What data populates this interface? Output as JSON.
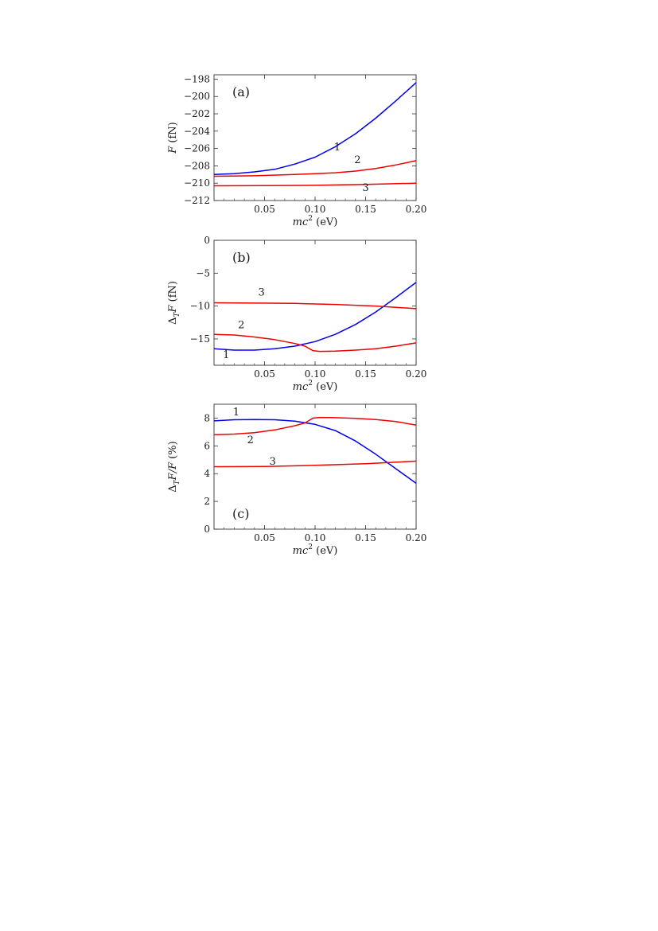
{
  "chart_data": [
    {
      "type": "line",
      "panel_label": "(a)",
      "xlabel": {
        "var": "mc",
        "sup": "2",
        "unit": "(eV)"
      },
      "ylabel": {
        "var": "F",
        "sub": "",
        "rest": "",
        "unit": "(fN)"
      },
      "xlim": [
        0,
        0.2
      ],
      "ylim": [
        -212,
        -197.5
      ],
      "xticks": [
        0.05,
        0.1,
        0.15,
        0.2
      ],
      "xtick_labels": [
        "0.05",
        "0.10",
        "0.15",
        "0.20"
      ],
      "yticks": [
        -198,
        -200,
        -202,
        -204,
        -206,
        -208,
        -210,
        -212
      ],
      "ytick_labels": [
        "−198",
        "−200",
        "−202",
        "−204",
        "−206",
        "−208",
        "−210",
        "−212"
      ],
      "series": [
        {
          "label": "1",
          "color": "#0000ee",
          "label_at": [
            0.122,
            -206.2
          ],
          "x": [
            0,
            0.02,
            0.04,
            0.06,
            0.08,
            0.1,
            0.12,
            0.14,
            0.16,
            0.18,
            0.2
          ],
          "y": [
            -209.0,
            -208.9,
            -208.7,
            -208.4,
            -207.8,
            -207.0,
            -205.8,
            -204.3,
            -202.5,
            -200.5,
            -198.4
          ]
        },
        {
          "label": "2",
          "color": "#ee0000",
          "label_at": [
            0.142,
            -207.7
          ],
          "x": [
            0,
            0.04,
            0.08,
            0.1,
            0.12,
            0.14,
            0.16,
            0.18,
            0.2
          ],
          "y": [
            -209.2,
            -209.15,
            -209.0,
            -208.9,
            -208.8,
            -208.6,
            -208.3,
            -207.9,
            -207.4
          ]
        },
        {
          "label": "3",
          "color": "#ee0000",
          "label_at": [
            0.15,
            -210.9
          ],
          "x": [
            0,
            0.05,
            0.1,
            0.15,
            0.2
          ],
          "y": [
            -210.3,
            -210.28,
            -210.25,
            -210.15,
            -210.0
          ]
        }
      ]
    },
    {
      "type": "line",
      "panel_label": "(b)",
      "xlabel": {
        "var": "mc",
        "sup": "2",
        "unit": "(eV)"
      },
      "ylabel": {
        "var": "Δ",
        "sub": "T",
        "rest": "F",
        "unit": "(fN)"
      },
      "xlim": [
        0,
        0.2
      ],
      "ylim": [
        -19,
        0
      ],
      "xticks": [
        0.05,
        0.1,
        0.15,
        0.2
      ],
      "xtick_labels": [
        "0.05",
        "0.10",
        "0.15",
        "0.20"
      ],
      "yticks": [
        0,
        -5,
        -10,
        -15
      ],
      "ytick_labels": [
        "0",
        "−5",
        "−10",
        "−15"
      ],
      "series": [
        {
          "label": "1",
          "color": "#0000ee",
          "label_at": [
            0.012,
            -17.9
          ],
          "x": [
            0,
            0.02,
            0.04,
            0.06,
            0.08,
            0.1,
            0.12,
            0.14,
            0.16,
            0.18,
            0.2
          ],
          "y": [
            -16.5,
            -16.7,
            -16.7,
            -16.5,
            -16.1,
            -15.4,
            -14.3,
            -12.8,
            -10.9,
            -8.7,
            -6.4
          ]
        },
        {
          "label": "2",
          "color": "#ee0000",
          "label_at": [
            0.027,
            -13.4
          ],
          "x": [
            0,
            0.02,
            0.04,
            0.06,
            0.08,
            0.09,
            0.098,
            0.105,
            0.12,
            0.14,
            0.16,
            0.18,
            0.2
          ],
          "y": [
            -14.3,
            -14.4,
            -14.7,
            -15.1,
            -15.7,
            -16.1,
            -16.8,
            -16.9,
            -16.85,
            -16.7,
            -16.5,
            -16.1,
            -15.6
          ]
        },
        {
          "label": "3",
          "color": "#ee0000",
          "label_at": [
            0.047,
            -8.4
          ],
          "x": [
            0,
            0.04,
            0.08,
            0.12,
            0.16,
            0.2
          ],
          "y": [
            -9.5,
            -9.55,
            -9.6,
            -9.75,
            -10.0,
            -10.4
          ]
        }
      ]
    },
    {
      "type": "line",
      "panel_label": "(c)",
      "xlabel": {
        "var": "mc",
        "sup": "2",
        "unit": "(eV)"
      },
      "ylabel": {
        "var": "Δ",
        "sub": "T",
        "rest": "F/F",
        "unit": "(%)"
      },
      "xlim": [
        0,
        0.2
      ],
      "ylim": [
        0,
        9
      ],
      "xticks": [
        0.05,
        0.1,
        0.15,
        0.2
      ],
      "xtick_labels": [
        "0.05",
        "0.10",
        "0.15",
        "0.20"
      ],
      "yticks": [
        0,
        2,
        4,
        6,
        8
      ],
      "ytick_labels": [
        "0",
        "2",
        "4",
        "6",
        "8"
      ],
      "series": [
        {
          "label": "1",
          "color": "#0000ee",
          "label_at": [
            0.022,
            8.2
          ],
          "x": [
            0,
            0.02,
            0.04,
            0.06,
            0.08,
            0.1,
            0.12,
            0.14,
            0.16,
            0.18,
            0.2
          ],
          "y": [
            7.8,
            7.88,
            7.9,
            7.88,
            7.78,
            7.55,
            7.1,
            6.35,
            5.4,
            4.35,
            3.3
          ]
        },
        {
          "label": "2",
          "color": "#ee0000",
          "label_at": [
            0.036,
            6.2
          ],
          "x": [
            0,
            0.02,
            0.04,
            0.06,
            0.08,
            0.09,
            0.098,
            0.105,
            0.12,
            0.14,
            0.16,
            0.18,
            0.2
          ],
          "y": [
            6.8,
            6.85,
            6.95,
            7.15,
            7.45,
            7.65,
            8.0,
            8.05,
            8.03,
            7.98,
            7.9,
            7.75,
            7.5
          ]
        },
        {
          "label": "3",
          "color": "#ee0000",
          "label_at": [
            0.058,
            4.65
          ],
          "x": [
            0,
            0.05,
            0.1,
            0.15,
            0.2
          ],
          "y": [
            4.5,
            4.52,
            4.6,
            4.72,
            4.9
          ]
        }
      ]
    }
  ]
}
